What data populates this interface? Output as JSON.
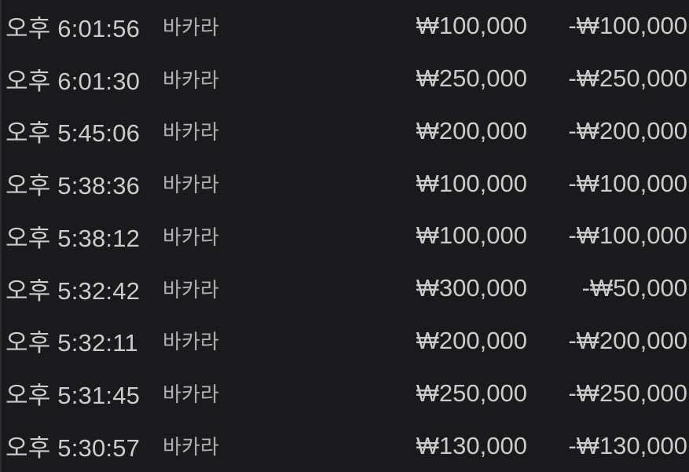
{
  "colors": {
    "background": "#1a1a1c",
    "left_edge_strip": "#2e2e30",
    "text_primary": "#cbcbcd",
    "text_secondary": "#b2b2b4"
  },
  "history": {
    "columns": [
      "time",
      "game",
      "amount",
      "change"
    ],
    "rows": [
      {
        "time": "오후 6:01:56",
        "game": "바카라",
        "amount": "₩100,000",
        "change": "-₩100,000"
      },
      {
        "time": "오후 6:01:30",
        "game": "바카라",
        "amount": "₩250,000",
        "change": "-₩250,000"
      },
      {
        "time": "오후 5:45:06",
        "game": "바카라",
        "amount": "₩200,000",
        "change": "-₩200,000"
      },
      {
        "time": "오후 5:38:36",
        "game": "바카라",
        "amount": "₩100,000",
        "change": "-₩100,000"
      },
      {
        "time": "오후 5:38:12",
        "game": "바카라",
        "amount": "₩100,000",
        "change": "-₩100,000"
      },
      {
        "time": "오후 5:32:42",
        "game": "바카라",
        "amount": "₩300,000",
        "change": "-₩50,000"
      },
      {
        "time": "오후 5:32:11",
        "game": "바카라",
        "amount": "₩200,000",
        "change": "-₩200,000"
      },
      {
        "time": "오후 5:31:45",
        "game": "바카라",
        "amount": "₩250,000",
        "change": "-₩250,000"
      },
      {
        "time": "오후 5:30:57",
        "game": "바카라",
        "amount": "₩130,000",
        "change": "-₩130,000"
      }
    ]
  }
}
